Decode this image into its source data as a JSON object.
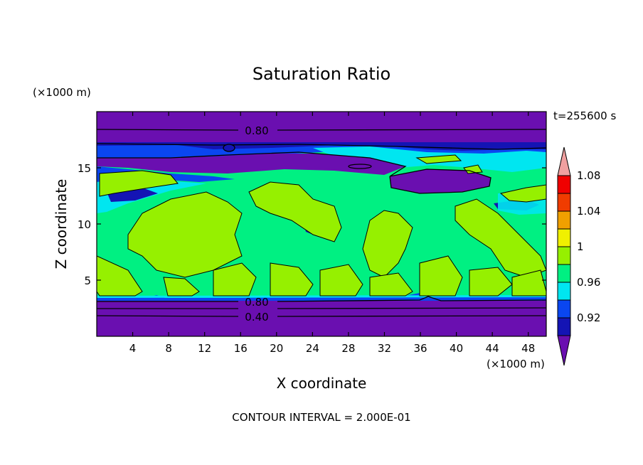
{
  "chart_data": {
    "type": "heatmap",
    "title": "Saturation Ratio",
    "xlabel": "X coordinate",
    "ylabel": "Z coordinate",
    "x_unit_label": "(×1000 m)",
    "y_unit_label": "(×1000 m)",
    "time_label": "t=255600 s",
    "footer": "CONTOUR INTERVAL = 2.000E-01",
    "xlim": [
      0,
      50
    ],
    "ylim": [
      0,
      20
    ],
    "x_ticks": [
      4,
      8,
      12,
      16,
      20,
      24,
      28,
      32,
      36,
      40,
      44,
      48
    ],
    "y_ticks": [
      5,
      10,
      15
    ],
    "contour_labels": [
      {
        "text": "0.80",
        "x": 17,
        "z": 18.1
      },
      {
        "text": "0.80",
        "x": 17,
        "z": 3.0
      },
      {
        "text": "0.40",
        "x": 17,
        "z": 1.7
      }
    ],
    "colorbar": {
      "levels": [
        0.92,
        0.94,
        0.96,
        0.98,
        1.0,
        1.02,
        1.04,
        1.06,
        1.08,
        1.1
      ],
      "tick_labels": [
        "0.92",
        "0.96",
        "1",
        "1.04",
        "1.08"
      ],
      "colors": [
        "#6a0fb0",
        "#1414b4",
        "#0a46f0",
        "#00e6f0",
        "#00f082",
        "#96f000",
        "#f0f000",
        "#f0a000",
        "#f03c00",
        "#f00000",
        "#f0a0a0"
      ]
    },
    "bands": [
      {
        "z0": 0,
        "z1": 3.3,
        "level": "below 0.92"
      },
      {
        "z0": 3.3,
        "z1": 3.5,
        "level": "0.94-0.98"
      },
      {
        "z0": 3.5,
        "z1": 14.5,
        "level": "0.98-1.00 with 1.00-1.02 cells"
      },
      {
        "z0": 14.5,
        "z1": 17.2,
        "level": "mixed 0.92-1.00"
      },
      {
        "z0": 17.2,
        "z1": 20,
        "level": "below 0.92"
      }
    ]
  }
}
